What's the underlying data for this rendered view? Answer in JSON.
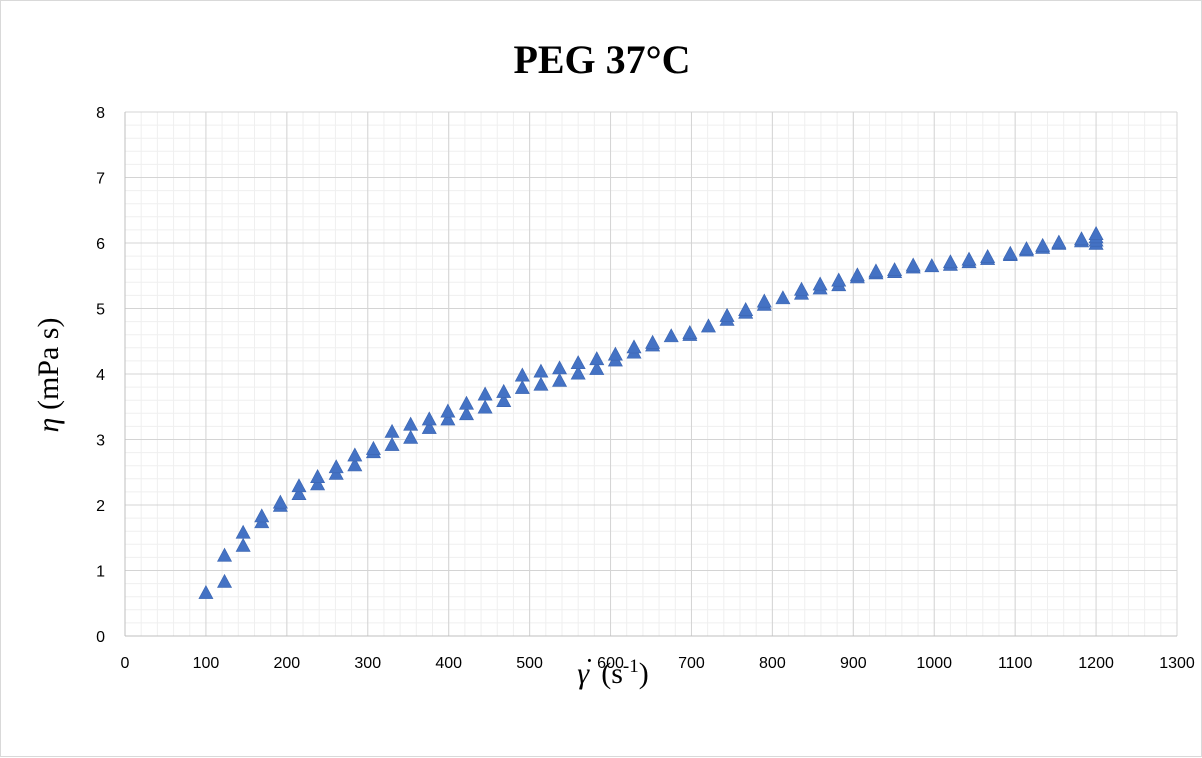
{
  "chart_data": {
    "type": "scatter",
    "title": "PEG 37°C",
    "xlabel": {
      "symbol": "γ",
      "dot": "·",
      "unit_open": " (s",
      "unit_exp": "-1",
      "unit_close": ")"
    },
    "ylabel": {
      "symbol": "η",
      "unit": " (mPa s)"
    },
    "xlim": [
      0,
      1300
    ],
    "ylim": [
      0,
      8
    ],
    "x_major_ticks": [
      "0",
      "100",
      "200",
      "300",
      "400",
      "500",
      "600",
      "700",
      "800",
      "900",
      "1000",
      "1100",
      "1200",
      "1300"
    ],
    "y_major_ticks": [
      "0",
      "1",
      "2",
      "3",
      "4",
      "5",
      "6",
      "7",
      "8"
    ],
    "x_minor_step": 20,
    "y_minor_step": 0.2,
    "grid": true,
    "legend": "none",
    "marker": "triangle",
    "marker_color": "#4472C4",
    "points": [
      [
        100,
        0.65
      ],
      [
        123,
        0.82
      ],
      [
        123,
        1.22
      ],
      [
        146,
        1.37
      ],
      [
        146,
        1.57
      ],
      [
        169,
        1.73
      ],
      [
        169,
        1.82
      ],
      [
        192,
        1.98
      ],
      [
        192,
        2.03
      ],
      [
        215,
        2.16
      ],
      [
        215,
        2.28
      ],
      [
        238,
        2.31
      ],
      [
        238,
        2.42
      ],
      [
        261,
        2.47
      ],
      [
        261,
        2.57
      ],
      [
        284,
        2.6
      ],
      [
        284,
        2.75
      ],
      [
        307,
        2.8
      ],
      [
        307,
        2.85
      ],
      [
        330,
        2.91
      ],
      [
        330,
        3.11
      ],
      [
        353,
        3.02
      ],
      [
        353,
        3.22
      ],
      [
        376,
        3.17
      ],
      [
        376,
        3.3
      ],
      [
        399,
        3.3
      ],
      [
        399,
        3.42
      ],
      [
        422,
        3.38
      ],
      [
        422,
        3.54
      ],
      [
        445,
        3.48
      ],
      [
        445,
        3.68
      ],
      [
        468,
        3.58
      ],
      [
        468,
        3.72
      ],
      [
        491,
        3.78
      ],
      [
        491,
        3.97
      ],
      [
        514,
        3.83
      ],
      [
        514,
        4.03
      ],
      [
        537,
        3.89
      ],
      [
        537,
        4.08
      ],
      [
        560,
        4.0
      ],
      [
        560,
        4.16
      ],
      [
        583,
        4.07
      ],
      [
        583,
        4.22
      ],
      [
        606,
        4.2
      ],
      [
        606,
        4.29
      ],
      [
        629,
        4.32
      ],
      [
        629,
        4.4
      ],
      [
        652,
        4.43
      ],
      [
        652,
        4.47
      ],
      [
        675,
        4.57
      ],
      [
        698,
        4.59
      ],
      [
        698,
        4.62
      ],
      [
        721,
        4.72
      ],
      [
        744,
        4.82
      ],
      [
        744,
        4.88
      ],
      [
        767,
        4.93
      ],
      [
        767,
        4.97
      ],
      [
        790,
        5.05
      ],
      [
        790,
        5.1
      ],
      [
        813,
        5.15
      ],
      [
        836,
        5.22
      ],
      [
        836,
        5.28
      ],
      [
        859,
        5.3
      ],
      [
        859,
        5.36
      ],
      [
        882,
        5.35
      ],
      [
        882,
        5.42
      ],
      [
        905,
        5.47
      ],
      [
        905,
        5.5
      ],
      [
        928,
        5.53
      ],
      [
        928,
        5.56
      ],
      [
        951,
        5.55
      ],
      [
        951,
        5.58
      ],
      [
        974,
        5.62
      ],
      [
        974,
        5.65
      ],
      [
        997,
        5.64
      ],
      [
        1020,
        5.66
      ],
      [
        1020,
        5.7
      ],
      [
        1043,
        5.7
      ],
      [
        1043,
        5.74
      ],
      [
        1066,
        5.75
      ],
      [
        1066,
        5.78
      ],
      [
        1094,
        5.81
      ],
      [
        1094,
        5.83
      ],
      [
        1114,
        5.88
      ],
      [
        1114,
        5.9
      ],
      [
        1134,
        5.92
      ],
      [
        1134,
        5.95
      ],
      [
        1154,
        5.98
      ],
      [
        1154,
        6.0
      ],
      [
        1182,
        6.02
      ],
      [
        1182,
        6.05
      ],
      [
        1200,
        5.98
      ],
      [
        1200,
        6.03
      ],
      [
        1200,
        6.08
      ],
      [
        1200,
        6.13
      ]
    ]
  }
}
